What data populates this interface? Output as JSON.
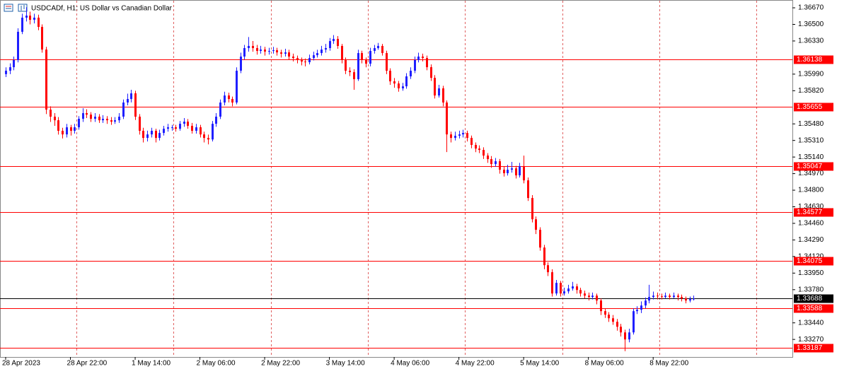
{
  "chart_data": {
    "type": "candlestick",
    "title": "USDCADf, H1:  US Dollar vs Canadian Dollar",
    "categories": [
      "28 Apr 2023",
      null,
      null,
      null,
      null,
      null,
      null,
      null,
      null,
      null,
      null,
      null,
      null,
      null,
      null,
      null,
      "28 Apr 22:00",
      null,
      null,
      null,
      null,
      null,
      null,
      null,
      null,
      null,
      null,
      null,
      null,
      null,
      null,
      null,
      "1 May 14:00",
      null,
      null,
      null,
      null,
      null,
      null,
      null,
      null,
      null,
      null,
      null,
      null,
      null,
      null,
      null,
      "2 May 06:00",
      null,
      null,
      null,
      null,
      null,
      null,
      null,
      null,
      null,
      null,
      null,
      null,
      null,
      null,
      null,
      "2 May 22:00",
      null,
      null,
      null,
      null,
      null,
      null,
      null,
      null,
      null,
      null,
      null,
      null,
      null,
      null,
      null,
      "3 May 14:00",
      null,
      null,
      null,
      null,
      null,
      null,
      null,
      null,
      null,
      null,
      null,
      null,
      null,
      null,
      null,
      "4 May 06:00",
      null,
      null,
      null,
      null,
      null,
      null,
      null,
      null,
      null,
      null,
      null,
      null,
      null,
      null,
      null,
      "4 May 22:00",
      null,
      null,
      null,
      null,
      null,
      null,
      null,
      null,
      null,
      null,
      null,
      null,
      null,
      null,
      null,
      "5 May 14:00",
      null,
      null,
      null,
      null,
      null,
      null,
      null,
      null,
      null,
      null,
      null,
      null,
      null,
      null,
      null,
      "8 May 06:00",
      null,
      null,
      null,
      null,
      null,
      null,
      null,
      null,
      null,
      null,
      null,
      null,
      null,
      null,
      null,
      "8 May 22:00",
      null,
      null,
      null,
      null,
      null,
      null,
      null,
      null,
      null,
      null
    ],
    "open": [
      1.3599,
      1.36025,
      1.36061,
      1.36134,
      1.36424,
      1.36569,
      1.3659,
      1.36547,
      1.36569,
      1.36474,
      1.36242,
      1.35626,
      1.35554,
      1.35517,
      1.35409,
      1.35372,
      1.35445,
      1.35409,
      1.35445,
      1.35532,
      1.3559,
      1.35575,
      1.35532,
      1.35554,
      1.35517,
      1.35532,
      1.35517,
      1.35503,
      1.35517,
      1.35554,
      1.35699,
      1.35735,
      1.35793,
      1.35554,
      1.35409,
      1.35336,
      1.35372,
      1.35409,
      1.35336,
      1.35387,
      1.3543,
      1.35445,
      1.35445,
      1.3543,
      1.35481,
      1.35503,
      1.3546,
      1.35409,
      1.35445,
      1.35372,
      1.35336,
      1.3532,
      1.35481,
      1.35554,
      1.35699,
      1.35771,
      1.35735,
      1.35699,
      1.36025,
      1.3617,
      1.36257,
      1.36279,
      1.36257,
      1.36228,
      1.36242,
      1.36221,
      1.36228,
      1.36235,
      1.36213,
      1.36199,
      1.36213,
      1.3617,
      1.36155,
      1.36134,
      1.36119,
      1.36112,
      1.36155,
      1.36184,
      1.36206,
      1.36242,
      1.36257,
      1.36329,
      1.36351,
      1.36279,
      1.36134,
      1.36025,
      1.3601,
      1.35938,
      1.36206,
      1.36134,
      1.36097,
      1.36228,
      1.36257,
      1.36279,
      1.36206,
      1.36025,
      1.35916,
      1.35894,
      1.35844,
      1.35865,
      1.35967,
      1.36025,
      1.36134,
      1.3617,
      1.36155,
      1.36061,
      1.35952,
      1.35771,
      1.35844,
      1.35699,
      1.35372,
      1.35336,
      1.35358,
      1.35372,
      1.35387,
      1.35336,
      1.35264,
      1.35227,
      1.35213,
      1.35155,
      1.35119,
      1.35068,
      1.35097,
      1.3501,
      1.34974,
      1.3501,
      1.35024,
      1.34952,
      1.35046,
      1.34901,
      1.3472,
      1.34502,
      1.34394,
      1.34212,
      1.34031,
      1.33959,
      1.33741,
      1.3385,
      1.33741,
      1.33763,
      1.33792,
      1.33814,
      1.33777,
      1.33741,
      1.33719,
      1.33705,
      1.33719,
      1.33669,
      1.3356,
      1.33524,
      1.33487,
      1.33451,
      1.334,
      1.33342,
      1.3327,
      1.33342,
      1.3356,
      1.33574,
      1.33618,
      1.33669,
      1.33705,
      1.33719,
      1.33712,
      1.33705,
      1.33719,
      1.33705,
      1.33719,
      1.33705,
      1.3369,
      1.33669,
      1.33683
    ],
    "high": [
      1.3606,
      1.361,
      1.3617,
      1.3646,
      1.3661,
      1.36677,
      1.3663,
      1.3661,
      1.366,
      1.365,
      1.3627,
      1.3566,
      1.3559,
      1.3555,
      1.3544,
      1.3548,
      1.3547,
      1.3548,
      1.3556,
      1.3564,
      1.3563,
      1.356,
      1.3559,
      1.3558,
      1.3557,
      1.3556,
      1.3555,
      1.3555,
      1.3559,
      1.3573,
      1.3579,
      1.3583,
      1.3582,
      1.3558,
      1.3544,
      1.3541,
      1.3544,
      1.3543,
      1.3542,
      1.3546,
      1.3548,
      1.3547,
      1.3547,
      1.3551,
      1.3554,
      1.3553,
      1.3549,
      1.3548,
      1.3547,
      1.354,
      1.3537,
      1.3551,
      1.3559,
      1.3573,
      1.3581,
      1.358,
      1.3576,
      1.3606,
      1.3621,
      1.3629,
      1.3637,
      1.3633,
      1.3629,
      1.3628,
      1.3627,
      1.3626,
      1.3627,
      1.3626,
      1.3624,
      1.3625,
      1.3624,
      1.362,
      1.3618,
      1.3616,
      1.3615,
      1.3619,
      1.3622,
      1.3624,
      1.3628,
      1.363,
      1.3636,
      1.3639,
      1.3638,
      1.363,
      1.3616,
      1.3606,
      1.3604,
      1.3624,
      1.3623,
      1.3616,
      1.3626,
      1.3629,
      1.3631,
      1.363,
      1.3623,
      1.3605,
      1.3595,
      1.3592,
      1.359,
      1.36,
      1.3606,
      1.3617,
      1.3621,
      1.362,
      1.3618,
      1.3609,
      1.3598,
      1.3588,
      1.3587,
      1.3572,
      1.354,
      1.354,
      1.3541,
      1.3542,
      1.3541,
      1.3536,
      1.3529,
      1.3526,
      1.3524,
      1.3518,
      1.3515,
      1.3513,
      1.3512,
      1.3504,
      1.3506,
      1.3509,
      1.3505,
      1.3508,
      1.35155,
      1.3493,
      1.3475,
      1.3453,
      1.3442,
      1.3424,
      1.3406,
      1.3399,
      1.3388,
      1.3387,
      1.338,
      1.3383,
      1.3386,
      1.3384,
      1.338,
      1.3377,
      1.3375,
      1.3375,
      1.3374,
      1.3369,
      1.3359,
      1.3355,
      1.3352,
      1.3348,
      1.3343,
      1.3337,
      1.3338,
      1.3359,
      1.3361,
      1.3366,
      1.337,
      1.3383,
      1.3376,
      1.3375,
      1.3374,
      1.3375,
      1.3374,
      1.3375,
      1.3374,
      1.3373,
      1.3371,
      1.3371,
      1.3372
    ],
    "low": [
      1.3596,
      1.3599,
      1.3603,
      1.3611,
      1.364,
      1.3653,
      1.365,
      1.3651,
      1.3644,
      1.3621,
      1.3558,
      1.355,
      1.3546,
      1.3537,
      1.3533,
      1.3534,
      1.3536,
      1.3538,
      1.3542,
      1.355,
      1.3554,
      1.355,
      1.355,
      1.3549,
      1.3549,
      1.3548,
      1.3547,
      1.3548,
      1.3549,
      1.3553,
      1.3567,
      1.357,
      1.3552,
      1.3537,
      1.3529,
      1.353,
      1.3534,
      1.3529,
      1.3531,
      1.3536,
      1.354,
      1.3541,
      1.354,
      1.3541,
      1.3545,
      1.3543,
      1.3538,
      1.3538,
      1.3534,
      1.3529,
      1.3527,
      1.353,
      1.3545,
      1.3553,
      1.3567,
      1.357,
      1.3566,
      1.3568,
      1.36,
      1.3614,
      1.3622,
      1.3622,
      1.3619,
      1.362,
      1.3618,
      1.3619,
      1.362,
      1.3618,
      1.3616,
      1.3617,
      1.3614,
      1.3612,
      1.361,
      1.3608,
      1.3607,
      1.3609,
      1.3613,
      1.3616,
      1.3618,
      1.3621,
      1.3623,
      1.363,
      1.3625,
      1.361,
      1.3599,
      1.3597,
      1.3583,
      1.3592,
      1.361,
      1.3606,
      1.3607,
      1.362,
      1.3624,
      1.3618,
      1.3599,
      1.3588,
      1.3585,
      1.3581,
      1.3582,
      1.3584,
      1.3594,
      1.36,
      1.3611,
      1.3612,
      1.3603,
      1.3592,
      1.3574,
      1.3575,
      1.3566,
      1.35191,
      1.3529,
      1.3531,
      1.3533,
      1.3534,
      1.353,
      1.3523,
      1.3519,
      1.3518,
      1.3512,
      1.3508,
      1.3503,
      1.3504,
      1.3497,
      1.3494,
      1.3495,
      1.3498,
      1.3492,
      1.3493,
      1.3487,
      1.3469,
      1.3447,
      1.3435,
      1.3418,
      1.3399,
      1.3392,
      1.3371,
      1.3372,
      1.3371,
      1.3372,
      1.3374,
      1.3377,
      1.3374,
      1.3371,
      1.3369,
      1.3367,
      1.3368,
      1.3363,
      1.3352,
      1.3349,
      1.3345,
      1.3342,
      1.3336,
      1.333,
      1.3315,
      1.3324,
      1.3332,
      1.3353,
      1.3354,
      1.3359,
      1.3364,
      1.3368,
      1.3368,
      1.3368,
      1.3369,
      1.3368,
      1.3369,
      1.3367,
      1.3366,
      1.3364,
      1.3365,
      1.3367
    ],
    "close": [
      1.36025,
      1.36061,
      1.36134,
      1.36424,
      1.36569,
      1.3659,
      1.36547,
      1.36569,
      1.36474,
      1.36242,
      1.35626,
      1.35554,
      1.35517,
      1.35409,
      1.35372,
      1.35445,
      1.35409,
      1.35445,
      1.35532,
      1.3559,
      1.35575,
      1.35532,
      1.35554,
      1.35517,
      1.35532,
      1.35517,
      1.35503,
      1.35517,
      1.35554,
      1.35699,
      1.35735,
      1.35793,
      1.35554,
      1.35409,
      1.35336,
      1.35372,
      1.35409,
      1.35336,
      1.35387,
      1.3543,
      1.35445,
      1.35445,
      1.3543,
      1.35481,
      1.35503,
      1.3546,
      1.35409,
      1.35445,
      1.35372,
      1.35336,
      1.3532,
      1.35481,
      1.35554,
      1.35699,
      1.35771,
      1.35735,
      1.35699,
      1.36025,
      1.3617,
      1.36257,
      1.36279,
      1.36257,
      1.36228,
      1.36242,
      1.36221,
      1.36228,
      1.36235,
      1.36213,
      1.36199,
      1.36213,
      1.3617,
      1.36155,
      1.36134,
      1.36119,
      1.36112,
      1.36155,
      1.36184,
      1.36206,
      1.36242,
      1.36257,
      1.36329,
      1.36351,
      1.36279,
      1.36134,
      1.36025,
      1.3601,
      1.35938,
      1.36206,
      1.36134,
      1.36097,
      1.36228,
      1.36257,
      1.36279,
      1.36206,
      1.36025,
      1.35916,
      1.35894,
      1.35844,
      1.35865,
      1.35967,
      1.36025,
      1.36134,
      1.3617,
      1.36155,
      1.36061,
      1.35952,
      1.35771,
      1.35844,
      1.35699,
      1.35372,
      1.35336,
      1.35358,
      1.35372,
      1.35387,
      1.35336,
      1.35264,
      1.35227,
      1.35213,
      1.35155,
      1.35119,
      1.35068,
      1.35097,
      1.3501,
      1.34974,
      1.3501,
      1.35024,
      1.34952,
      1.35046,
      1.34901,
      1.3472,
      1.34502,
      1.34394,
      1.34212,
      1.34031,
      1.33959,
      1.33741,
      1.3385,
      1.33741,
      1.33763,
      1.33792,
      1.33814,
      1.33777,
      1.33741,
      1.33719,
      1.33705,
      1.33719,
      1.33669,
      1.3356,
      1.33524,
      1.33487,
      1.33451,
      1.334,
      1.33342,
      1.3327,
      1.33342,
      1.3356,
      1.33574,
      1.33618,
      1.33669,
      1.33705,
      1.33719,
      1.33712,
      1.33705,
      1.33719,
      1.33705,
      1.33719,
      1.33705,
      1.3369,
      1.33669,
      1.33683,
      1.33688
    ],
    "up_color": "#1f1fff",
    "down_color": "#ff0000",
    "ylim": [
      1.3309,
      1.3675
    ],
    "yticks": [
      {
        "value": 1.3667,
        "label": "1.36670"
      },
      {
        "value": 1.365,
        "label": "1.36500"
      },
      {
        "value": 1.3633,
        "label": "1.36330"
      },
      {
        "value": 1.3599,
        "label": "1.35990"
      },
      {
        "value": 1.3582,
        "label": "1.35820"
      },
      {
        "value": 1.3548,
        "label": "1.35480"
      },
      {
        "value": 1.3531,
        "label": "1.35310"
      },
      {
        "value": 1.3514,
        "label": "1.35140"
      },
      {
        "value": 1.3497,
        "label": "1.34970"
      },
      {
        "value": 1.348,
        "label": "1.34800"
      },
      {
        "value": 1.3463,
        "label": "1.34630"
      },
      {
        "value": 1.3446,
        "label": "1.34460"
      },
      {
        "value": 1.3429,
        "label": "1.34290"
      },
      {
        "value": 1.3412,
        "label": "1.34120"
      },
      {
        "value": 1.3395,
        "label": "1.33950"
      },
      {
        "value": 1.3378,
        "label": "1.33780"
      },
      {
        "value": 1.3344,
        "label": "1.33440"
      },
      {
        "value": 1.3327,
        "label": "1.33270"
      }
    ],
    "levels": {
      "color": "#ff0000",
      "values": [
        1.36138,
        1.35655,
        1.35047,
        1.34577,
        1.34075,
        1.33588,
        1.33187
      ]
    },
    "last_price": {
      "value": 1.33688,
      "color": "#000000"
    }
  }
}
